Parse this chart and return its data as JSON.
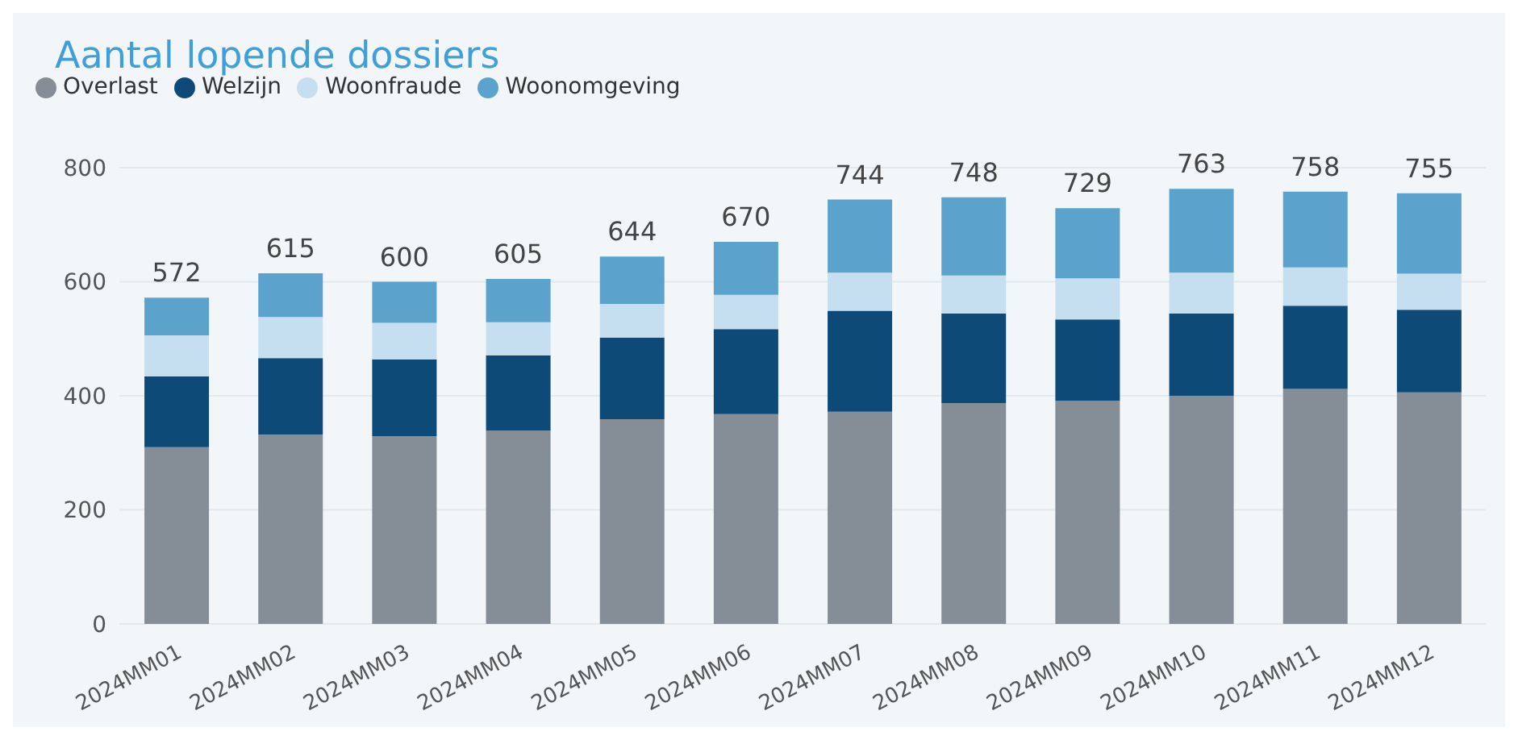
{
  "chart_data": {
    "type": "bar",
    "title": "Aantal lopende dossiers",
    "stacked": true,
    "legend": "top left",
    "grid": "y",
    "categories": [
      "2024MM01",
      "2024MM02",
      "2024MM03",
      "2024MM04",
      "2024MM05",
      "2024MM06",
      "2024MM07",
      "2024MM08",
      "2024MM09",
      "2024MM10",
      "2024MM11",
      "2024MM12"
    ],
    "series": [
      {
        "name": "Overlast",
        "color": "#858d96",
        "values": [
          310,
          332,
          329,
          339,
          359,
          368,
          372,
          387,
          391,
          400,
          412,
          406
        ]
      },
      {
        "name": "Welzijn",
        "color": "#0d4a78",
        "values": [
          124,
          134,
          135,
          132,
          143,
          149,
          177,
          157,
          143,
          144,
          146,
          145
        ]
      },
      {
        "name": "Woonfraude",
        "color": "#c5dff0",
        "values": [
          72,
          72,
          64,
          58,
          59,
          60,
          67,
          67,
          72,
          72,
          67,
          63
        ]
      },
      {
        "name": "Woonomgeving",
        "color": "#5ba3cc",
        "values": [
          66,
          77,
          72,
          76,
          83,
          93,
          128,
          137,
          123,
          147,
          133,
          141
        ]
      }
    ],
    "totals": [
      "572",
      "615",
      "600",
      "605",
      "644",
      "670",
      "744",
      "748",
      "729",
      "763",
      "758",
      "755"
    ],
    "ylim": [
      0,
      800
    ],
    "yticks": [
      0,
      200,
      400,
      600,
      800
    ]
  }
}
